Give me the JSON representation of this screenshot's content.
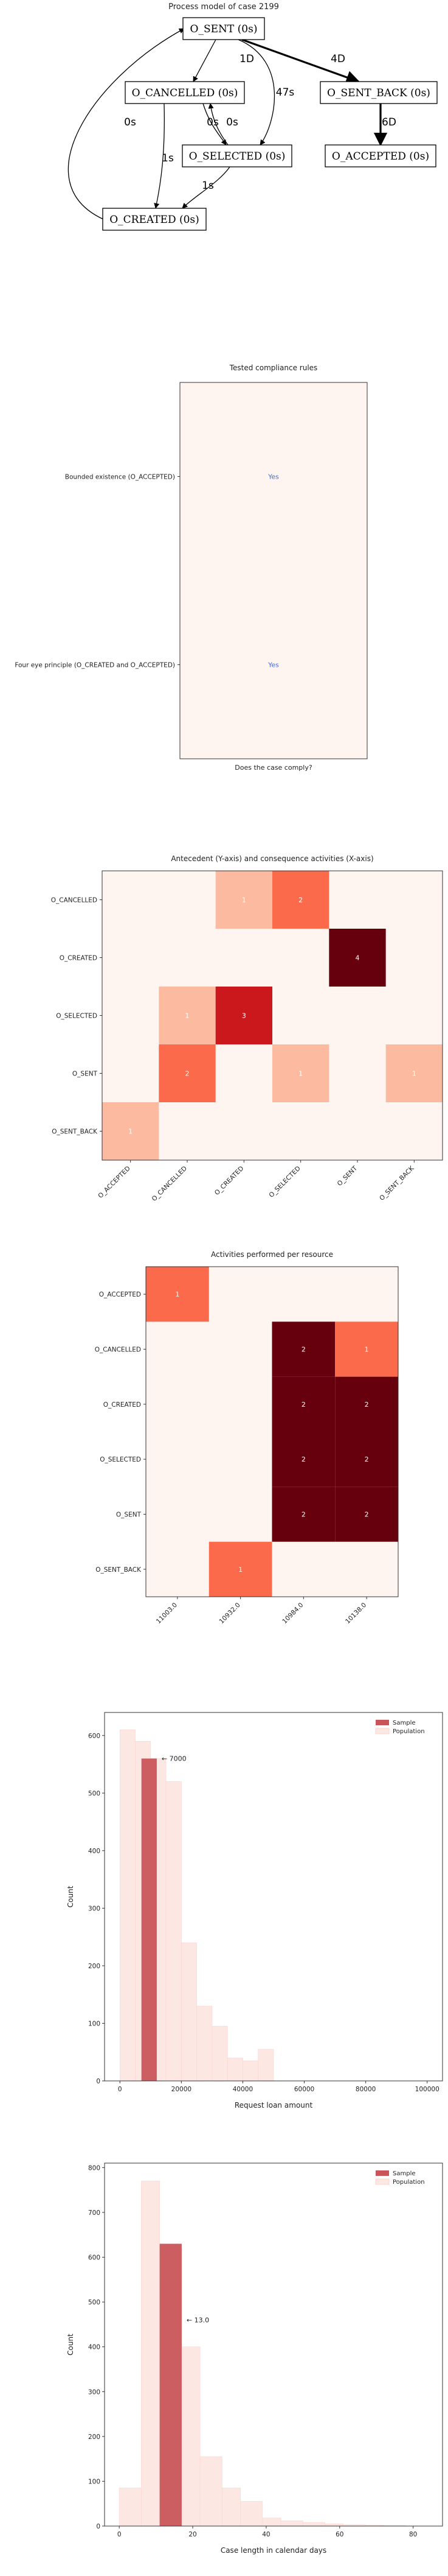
{
  "process_model": {
    "title": "Process model of case 2199",
    "nodes": [
      {
        "id": "sent",
        "label": "O_SENT (0s)"
      },
      {
        "id": "cancelled",
        "label": "O_CANCELLED (0s)"
      },
      {
        "id": "sent_back",
        "label": "O_SENT_BACK (0s)"
      },
      {
        "id": "selected",
        "label": "O_SELECTED (0s)"
      },
      {
        "id": "accepted",
        "label": "O_ACCEPTED (0s)"
      },
      {
        "id": "created",
        "label": "O_CREATED (0s)"
      }
    ],
    "edges": [
      {
        "from": "sent",
        "to": "cancelled",
        "label": "1D"
      },
      {
        "from": "sent",
        "to": "selected",
        "label": "47s"
      },
      {
        "from": "sent",
        "to": "sent_back",
        "label": "4D"
      },
      {
        "from": "sent_back",
        "to": "accepted",
        "label": "6D"
      },
      {
        "from": "cancelled",
        "to": "selected",
        "label": "0s"
      },
      {
        "from": "selected",
        "to": "cancelled",
        "label": "0s"
      },
      {
        "from": "cancelled",
        "to": "created",
        "label": "1s"
      },
      {
        "from": "selected",
        "to": "created",
        "label": "1s"
      },
      {
        "from": "created",
        "to": "sent",
        "label": "0s"
      }
    ]
  },
  "chart_data": [
    {
      "type": "table",
      "title": "Tested compliance rules",
      "xlabel": "Does the case comply?",
      "rows": [
        {
          "rule": "Bounded existence (O_ACCEPTED)",
          "value": "Yes"
        },
        {
          "rule": "Four eye principle (O_CREATED and O_ACCEPTED)",
          "value": "Yes"
        }
      ],
      "colors": {
        "cell": "#fff5f0",
        "text": "#4a6fd6"
      }
    },
    {
      "type": "heatmap",
      "title": "Antecedent (Y-axis) and consequence activities (X-axis)",
      "rows": [
        "O_CANCELLED",
        "O_CREATED",
        "O_SELECTED",
        "O_SENT",
        "O_SENT_BACK"
      ],
      "columns": [
        "O_ACCEPTED",
        "O_CANCELLED",
        "O_CREATED",
        "O_SELECTED",
        "O_SENT",
        "O_SENT_BACK"
      ],
      "values": [
        [
          null,
          null,
          1,
          2,
          null,
          null
        ],
        [
          null,
          null,
          null,
          null,
          4,
          null
        ],
        [
          null,
          1,
          3,
          null,
          null,
          null
        ],
        [
          null,
          2,
          null,
          1,
          null,
          1
        ],
        [
          1,
          null,
          null,
          null,
          null,
          null
        ]
      ],
      "vmax": 4
    },
    {
      "type": "heatmap",
      "title": "Activities performed per resource",
      "rows": [
        "O_ACCEPTED",
        "O_CANCELLED",
        "O_CREATED",
        "O_SELECTED",
        "O_SENT",
        "O_SENT_BACK"
      ],
      "columns": [
        "11003.0",
        "10932.0",
        "10984.0",
        "10138.0"
      ],
      "values": [
        [
          1,
          null,
          null,
          null
        ],
        [
          null,
          null,
          2,
          1
        ],
        [
          null,
          null,
          2,
          2
        ],
        [
          null,
          null,
          2,
          2
        ],
        [
          null,
          null,
          2,
          2
        ],
        [
          null,
          1,
          null,
          null
        ]
      ],
      "vmax": 2
    },
    {
      "type": "bar",
      "subtype": "histogram",
      "xlabel": "Request loan amount",
      "ylabel": "Count",
      "xlim": [
        -5000,
        105000
      ],
      "ylim": [
        0,
        640
      ],
      "xticks": [
        0,
        20000,
        40000,
        60000,
        80000,
        100000
      ],
      "yticks": [
        0,
        100,
        200,
        300,
        400,
        500,
        600
      ],
      "legend": "top-right",
      "bin_width": 5000,
      "series": [
        {
          "name": "Sample",
          "color": "#c9555a",
          "bins": [
            {
              "x0": 7000,
              "x1": 12000,
              "count": 560
            }
          ]
        },
        {
          "name": "Population",
          "color": "#fde7e3",
          "bins": [
            {
              "x0": 0,
              "x1": 5000,
              "count": 610
            },
            {
              "x0": 5000,
              "x1": 10000,
              "count": 590
            },
            {
              "x0": 10000,
              "x1": 15000,
              "count": 560
            },
            {
              "x0": 15000,
              "x1": 20000,
              "count": 520
            },
            {
              "x0": 20000,
              "x1": 25000,
              "count": 240
            },
            {
              "x0": 25000,
              "x1": 30000,
              "count": 130
            },
            {
              "x0": 30000,
              "x1": 35000,
              "count": 95
            },
            {
              "x0": 35000,
              "x1": 40000,
              "count": 40
            },
            {
              "x0": 40000,
              "x1": 45000,
              "count": 35
            },
            {
              "x0": 45000,
              "x1": 50000,
              "count": 55
            }
          ]
        }
      ],
      "annotation": {
        "text": "← 7000",
        "x": 7000,
        "y": 560
      }
    },
    {
      "type": "bar",
      "subtype": "histogram",
      "xlabel": "Case length in calendar days",
      "ylabel": "Count",
      "xlim": [
        -4,
        88
      ],
      "ylim": [
        0,
        810
      ],
      "xticks": [
        0,
        20,
        40,
        60,
        80
      ],
      "yticks": [
        0,
        100,
        200,
        300,
        400,
        500,
        600,
        700,
        800
      ],
      "legend": "top-right",
      "series": [
        {
          "name": "Sample",
          "color": "#c9555a",
          "bins": [
            {
              "x0": 11,
              "x1": 17,
              "count": 630
            }
          ]
        },
        {
          "name": "Population",
          "color": "#fde7e3",
          "bins": [
            {
              "x0": 0,
              "x1": 6,
              "count": 85
            },
            {
              "x0": 6,
              "x1": 11,
              "count": 770
            },
            {
              "x0": 11,
              "x1": 17,
              "count": 620
            },
            {
              "x0": 17,
              "x1": 22,
              "count": 400
            },
            {
              "x0": 22,
              "x1": 28,
              "count": 155
            },
            {
              "x0": 28,
              "x1": 33,
              "count": 85
            },
            {
              "x0": 33,
              "x1": 39,
              "count": 55
            },
            {
              "x0": 39,
              "x1": 44,
              "count": 18
            },
            {
              "x0": 44,
              "x1": 50,
              "count": 12
            },
            {
              "x0": 50,
              "x1": 56,
              "count": 8
            },
            {
              "x0": 56,
              "x1": 61,
              "count": 5
            },
            {
              "x0": 61,
              "x1": 67,
              "count": 3
            },
            {
              "x0": 67,
              "x1": 72,
              "count": 2
            },
            {
              "x0": 72,
              "x1": 78,
              "count": 1
            }
          ]
        }
      ],
      "annotation": {
        "text": "← 13.0",
        "x": 13,
        "y": 460
      }
    }
  ]
}
